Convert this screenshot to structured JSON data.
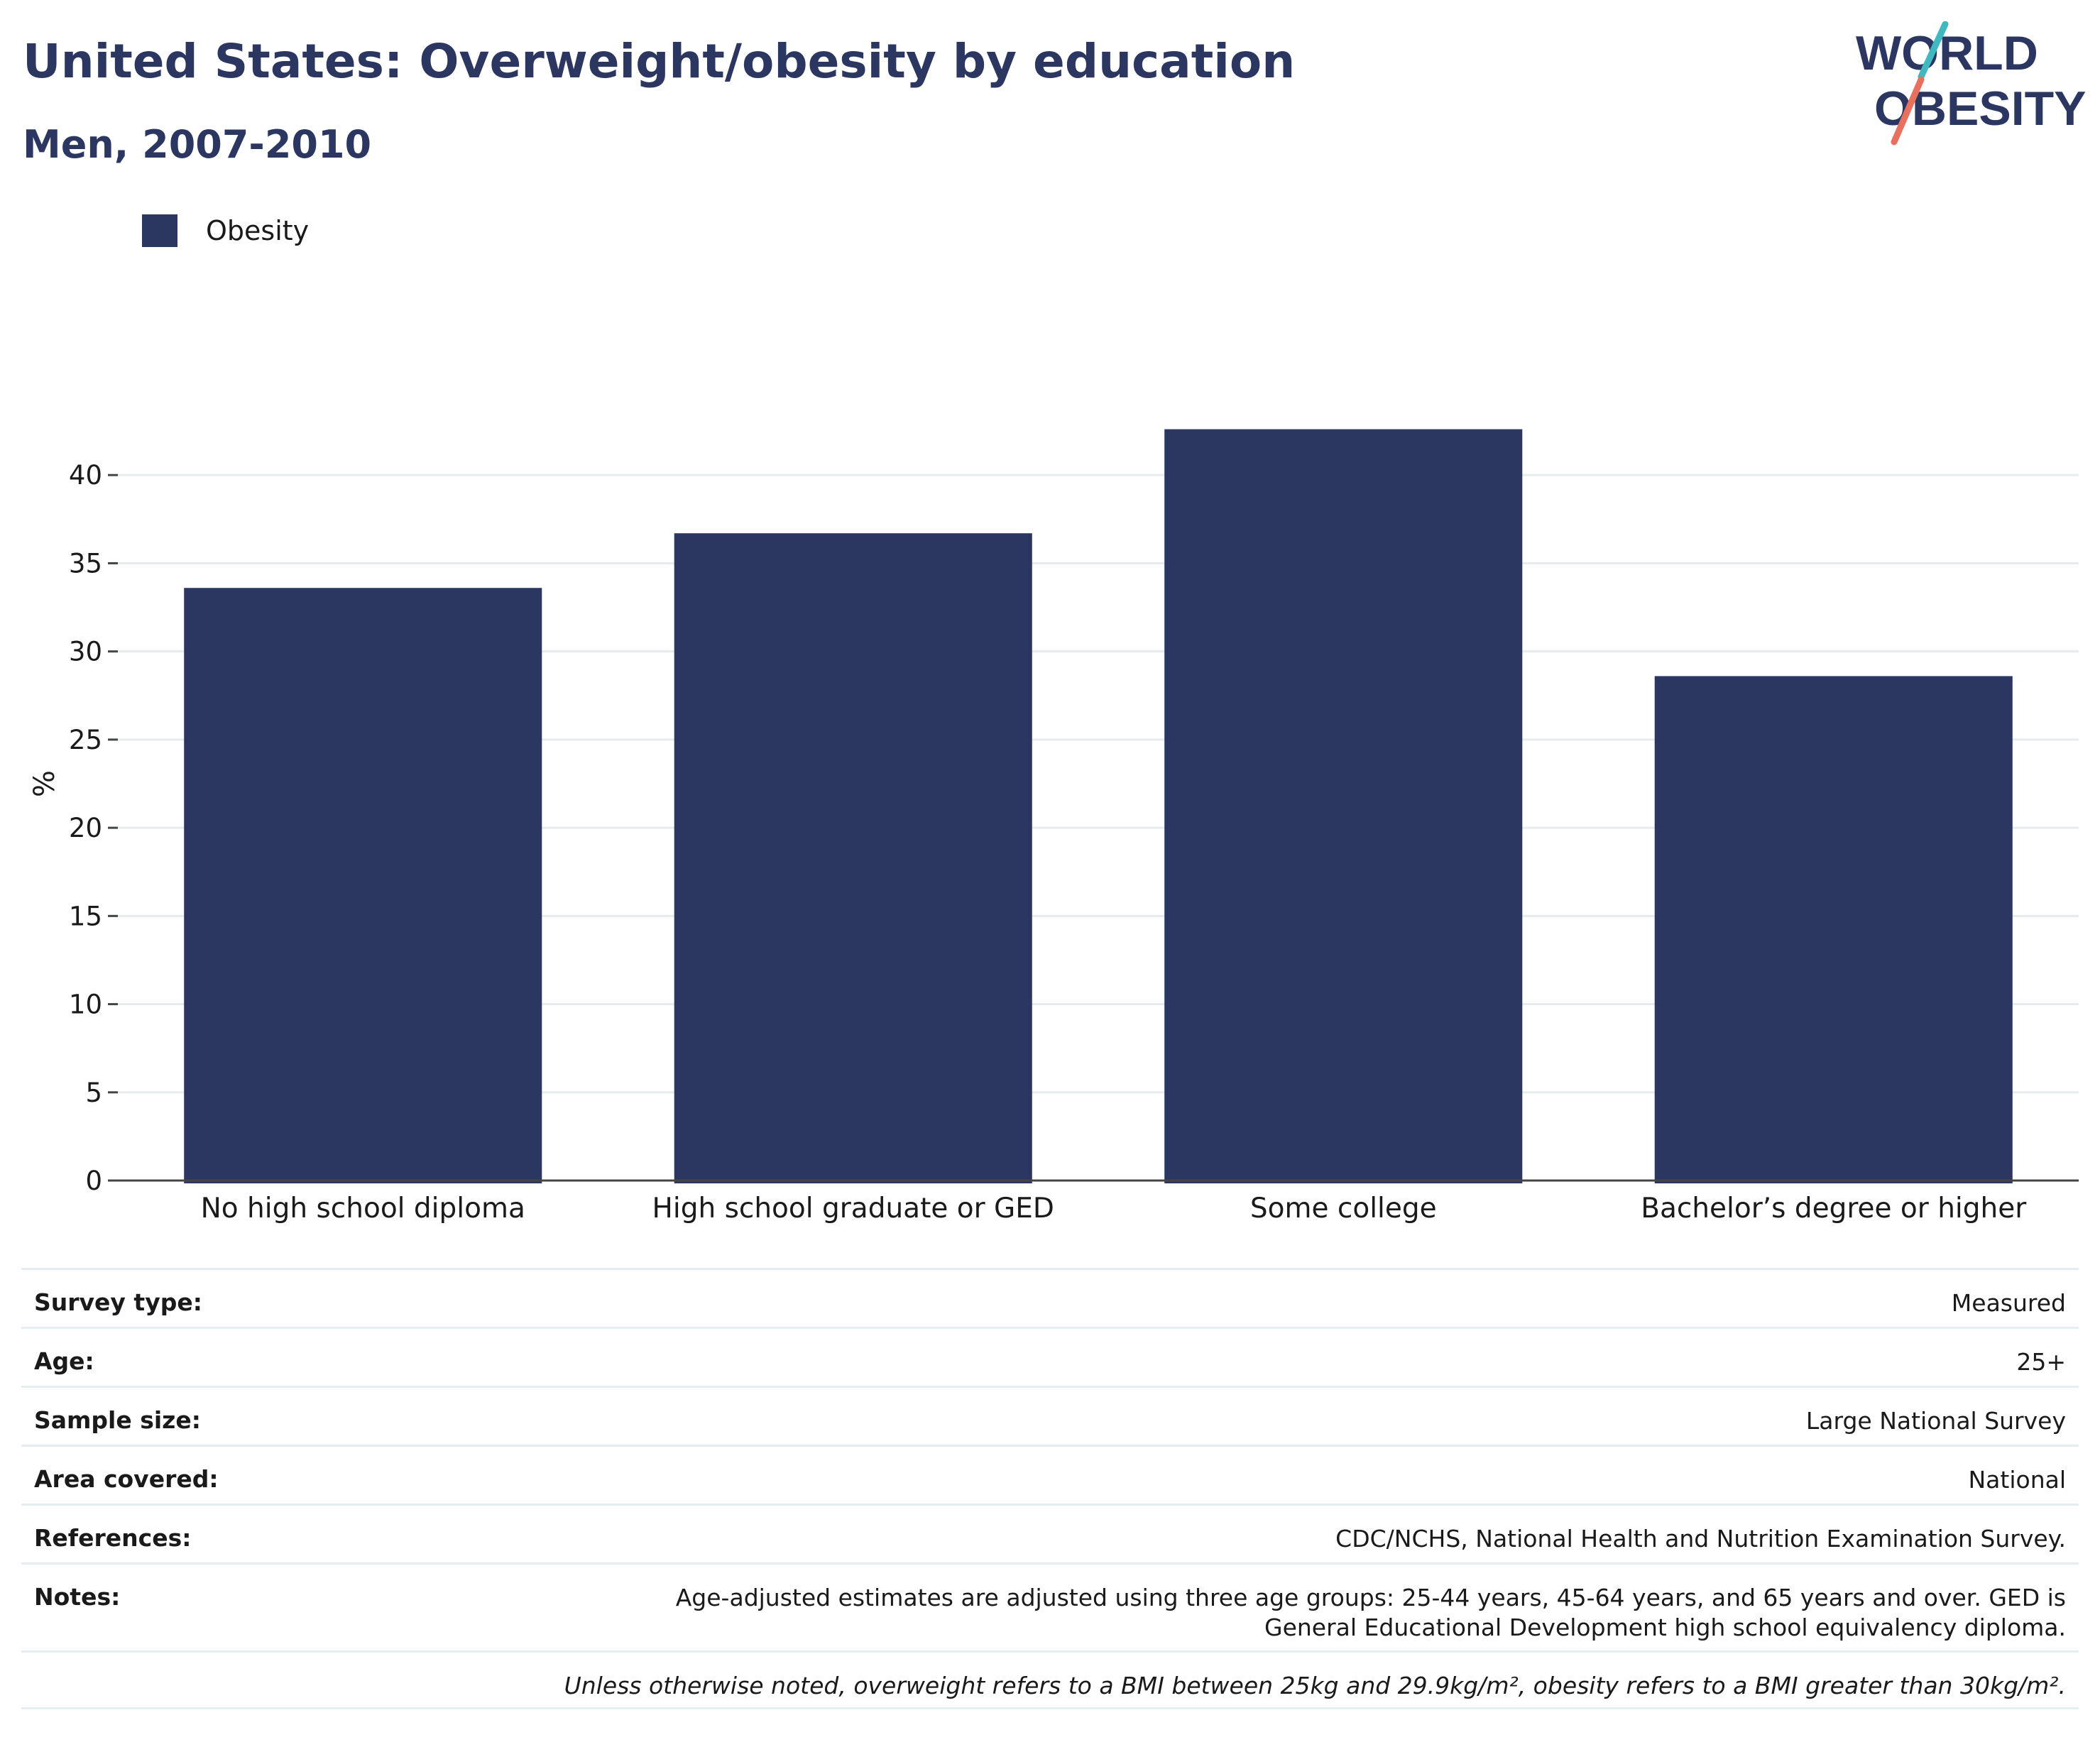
{
  "header": {
    "title": "United States: Overweight/obesity by education",
    "subtitle": "Men, 2007-2010"
  },
  "logo": {
    "line1": "WORLD",
    "line2": "OBESITY",
    "accent_teal": "#3fb8bf",
    "accent_coral": "#e8705f"
  },
  "legend": {
    "items": [
      {
        "label": "Obesity",
        "color": "#2b3661"
      }
    ]
  },
  "chart_data": {
    "type": "bar",
    "categories": [
      "No high school diploma",
      "High school graduate or GED",
      "Some college",
      "Bachelor’s degree or higher"
    ],
    "series": [
      {
        "name": "Obesity",
        "values": [
          33.6,
          36.7,
          42.6,
          28.6
        ],
        "color": "#2b3661"
      }
    ],
    "ylabel": "%",
    "ylim": [
      0,
      45
    ],
    "yticks": [
      0,
      5,
      10,
      15,
      20,
      25,
      30,
      35,
      40
    ],
    "grid": true,
    "legend_position": "top-left"
  },
  "meta": {
    "rows": [
      {
        "key": "Survey type:",
        "value": "Measured"
      },
      {
        "key": "Age:",
        "value": "25+"
      },
      {
        "key": "Sample size:",
        "value": "Large National Survey"
      },
      {
        "key": "Area covered:",
        "value": "National"
      },
      {
        "key": "References:",
        "value": "CDC/NCHS, National Health and Nutrition Examination Survey."
      },
      {
        "key": "Notes:",
        "value": "Age-adjusted estimates are adjusted using three age groups: 25-44 years, 45-64 years, and 65 years and over. GED is General Educational Development high school equivalency diploma."
      }
    ],
    "footnote": "Unless otherwise noted, overweight refers to a BMI between 25kg and 29.9kg/m², obesity refers to a BMI greater than 30kg/m²."
  }
}
